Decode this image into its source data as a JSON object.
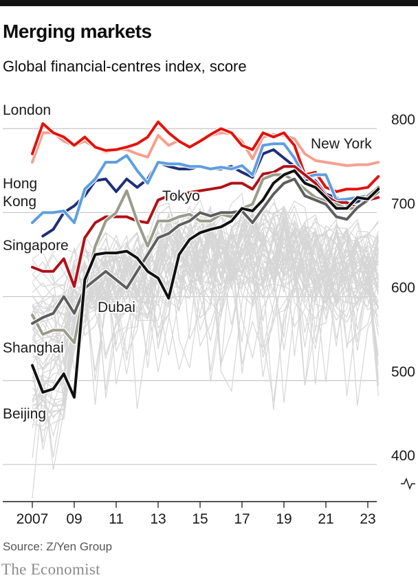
{
  "header": {
    "title": "Merging markets",
    "subtitle": "Global financial-centres index, score"
  },
  "footer": {
    "source": "Source: Z/Yen Group",
    "brand": "The Economist"
  },
  "chart_data": {
    "type": "line",
    "title": "Merging markets",
    "subtitle": "Global financial-centres index, score",
    "xlabel": "",
    "ylabel": "",
    "x": [
      2007.0,
      2007.5,
      2008.0,
      2008.5,
      2009.0,
      2009.5,
      2010.0,
      2010.5,
      2011.0,
      2011.5,
      2012.0,
      2012.5,
      2013.0,
      2013.5,
      2014.0,
      2014.5,
      2015.0,
      2015.5,
      2016.0,
      2016.5,
      2017.0,
      2017.5,
      2018.0,
      2018.5,
      2019.0,
      2019.5,
      2020.0,
      2020.5,
      2021.0,
      2021.5,
      2022.0,
      2022.5,
      2023.0,
      2023.5
    ],
    "xlim": [
      2006.1,
      2024.0
    ],
    "ylim": [
      355,
      820
    ],
    "y_ticks": [
      400,
      500,
      600,
      700,
      800
    ],
    "x_ticks": [
      {
        "value": 2007,
        "label": "2007"
      },
      {
        "value": 2009,
        "label": "09"
      },
      {
        "value": 2011,
        "label": "11"
      },
      {
        "value": 2013,
        "label": "13"
      },
      {
        "value": 2015,
        "label": "15"
      },
      {
        "value": 2017,
        "label": "17"
      },
      {
        "value": 2019,
        "label": "19"
      },
      {
        "value": 2021,
        "label": "21"
      },
      {
        "value": 2023,
        "label": "23"
      }
    ],
    "axis_break": true,
    "grid": true,
    "series": [
      {
        "name": "New York",
        "color": "#f5a08f",
        "label_color": "#1a1a1a",
        "values": [
          760,
          795,
          795,
          785,
          780,
          785,
          778,
          772,
          775,
          775,
          770,
          766,
          792,
          780,
          786,
          778,
          785,
          792,
          795,
          794,
          785,
          764,
          790,
          793,
          792,
          788,
          770,
          762,
          760,
          758,
          756,
          757,
          757,
          760
        ]
      },
      {
        "name": "London",
        "color": "#e3120b",
        "label_color": "#1a1a1a",
        "values": [
          770,
          806,
          795,
          790,
          780,
          790,
          778,
          774,
          775,
          778,
          782,
          790,
          808,
          795,
          785,
          778,
          785,
          793,
          800,
          795,
          780,
          775,
          795,
          790,
          795,
          780,
          745,
          748,
          730,
          725,
          728,
          728,
          730,
          743
        ]
      },
      {
        "name": "Hong Kong",
        "color": "#1f2e7a",
        "label_color": "#1a1a1a",
        "values": [
          null,
          672,
          680,
          700,
          708,
          720,
          738,
          740,
          725,
          740,
          730,
          740,
          760,
          755,
          752,
          752,
          755,
          752,
          752,
          755,
          748,
          742,
          770,
          775,
          765,
          755,
          740,
          738,
          722,
          718,
          710,
          713,
          716,
          730
        ]
      },
      {
        "name": "Singapore",
        "color": "#5d9ee0",
        "label_color": "#1a1a1a",
        "values": [
          688,
          700,
          700,
          702,
          688,
          728,
          740,
          760,
          760,
          768,
          750,
          735,
          760,
          758,
          758,
          755,
          755,
          752,
          754,
          752,
          756,
          745,
          780,
          782,
          782,
          765,
          742,
          745,
          745,
          715,
          716,
          718,
          720,
          730
        ]
      },
      {
        "name": "Tokyo",
        "color": "#b01117",
        "label_color": "#1a1a1a",
        "values": [
          635,
          630,
          630,
          645,
          612,
          670,
          688,
          695,
          695,
          695,
          690,
          688,
          715,
          720,
          722,
          724,
          726,
          728,
          730,
          735,
          735,
          728,
          746,
          748,
          755,
          755,
          745,
          735,
          720,
          712,
          712,
          705,
          715,
          718
        ]
      },
      {
        "name": "Shanghai",
        "color": "#9b9b8b",
        "label_color": "#1a1a1a",
        "values": [
          578,
          555,
          560,
          560,
          545,
          610,
          660,
          690,
          700,
          726,
          690,
          660,
          690,
          690,
          695,
          698,
          690,
          690,
          698,
          695,
          705,
          710,
          740,
          745,
          745,
          738,
          728,
          718,
          714,
          710,
          705,
          705,
          720,
          730
        ]
      },
      {
        "name": "Dubai",
        "color": "#5e5e5e",
        "label_color": "#1a1a1a",
        "values": [
          568,
          575,
          580,
          600,
          580,
          610,
          620,
          630,
          620,
          610,
          630,
          650,
          670,
          675,
          685,
          690,
          700,
          696,
          700,
          700,
          702,
          688,
          705,
          722,
          735,
          740,
          720,
          715,
          710,
          695,
          692,
          706,
          715,
          725
        ]
      },
      {
        "name": "Beijing",
        "color": "#111111",
        "label_color": "#1a1a1a",
        "values": [
          518,
          486,
          490,
          508,
          480,
          620,
          650,
          652,
          652,
          654,
          646,
          630,
          622,
          598,
          650,
          668,
          676,
          680,
          683,
          690,
          705,
          702,
          715,
          735,
          745,
          750,
          735,
          730,
          718,
          705,
          705,
          718,
          716,
          728
        ]
      }
    ]
  }
}
